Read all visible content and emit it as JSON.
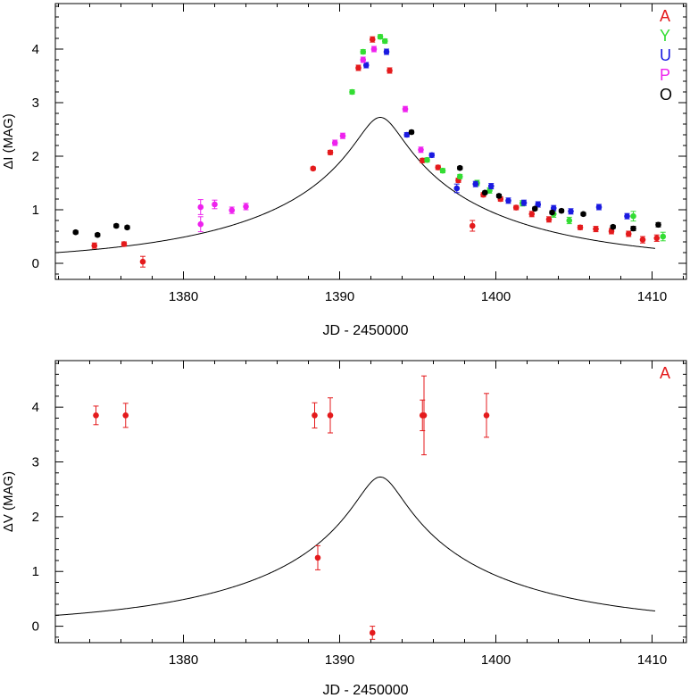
{
  "chart_data": [
    {
      "type": "scatter",
      "title": "",
      "xlabel": "JD - 2450000",
      "ylabel": "ΔI (MAG)",
      "xlim": [
        1371.8,
        1412.2
      ],
      "ylim": [
        -0.3,
        4.85
      ],
      "x_ticks": [
        1380,
        1390,
        1400,
        1410
      ],
      "y_ticks": [
        0,
        1,
        2,
        3,
        4
      ],
      "grid": false,
      "legend_position": "top-right",
      "model_curve": {
        "t0": 1392.6,
        "u0": 0.0815,
        "tE": 16.4,
        "x_range": [
          1371.8,
          1410.2
        ]
      },
      "series": [
        {
          "name": "A",
          "color": "#e41a1c",
          "points": [
            {
              "x": 1374.3,
              "y": 0.33,
              "err": 0.05
            },
            {
              "x": 1376.2,
              "y": 0.36,
              "err": 0.04
            },
            {
              "x": 1377.4,
              "y": 0.03,
              "err": 0.1
            },
            {
              "x": 1388.3,
              "y": 1.77,
              "err": 0.03
            },
            {
              "x": 1389.4,
              "y": 2.07,
              "err": 0.04
            },
            {
              "x": 1391.2,
              "y": 3.65,
              "err": 0.05
            },
            {
              "x": 1392.1,
              "y": 4.18,
              "err": 0.05
            },
            {
              "x": 1393.2,
              "y": 3.6,
              "err": 0.05
            },
            {
              "x": 1395.3,
              "y": 1.92,
              "err": 0.04
            },
            {
              "x": 1396.3,
              "y": 1.79,
              "err": 0.04
            },
            {
              "x": 1397.6,
              "y": 1.55,
              "err": 0.04
            },
            {
              "x": 1398.5,
              "y": 0.7,
              "err": 0.1
            },
            {
              "x": 1399.2,
              "y": 1.28,
              "err": 0.04
            },
            {
              "x": 1400.3,
              "y": 1.2,
              "err": 0.04
            },
            {
              "x": 1401.3,
              "y": 1.04,
              "err": 0.04
            },
            {
              "x": 1402.3,
              "y": 0.92,
              "err": 0.05
            },
            {
              "x": 1403.4,
              "y": 0.82,
              "err": 0.05
            },
            {
              "x": 1405.4,
              "y": 0.67,
              "err": 0.04
            },
            {
              "x": 1406.4,
              "y": 0.64,
              "err": 0.05
            },
            {
              "x": 1407.4,
              "y": 0.6,
              "err": 0.05
            },
            {
              "x": 1408.5,
              "y": 0.55,
              "err": 0.05
            },
            {
              "x": 1409.4,
              "y": 0.44,
              "err": 0.06
            },
            {
              "x": 1410.3,
              "y": 0.47,
              "err": 0.06
            }
          ]
        },
        {
          "name": "Y",
          "color": "#33dd33",
          "points": [
            {
              "x": 1390.8,
              "y": 3.2,
              "err": 0.04
            },
            {
              "x": 1391.5,
              "y": 3.95,
              "err": 0.04
            },
            {
              "x": 1392.6,
              "y": 4.23,
              "err": 0.04
            },
            {
              "x": 1392.9,
              "y": 4.15,
              "err": 0.04
            },
            {
              "x": 1395.6,
              "y": 1.93,
              "err": 0.04
            },
            {
              "x": 1396.6,
              "y": 1.73,
              "err": 0.04
            },
            {
              "x": 1397.7,
              "y": 1.62,
              "err": 0.04
            },
            {
              "x": 1398.8,
              "y": 1.5,
              "err": 0.05
            },
            {
              "x": 1399.6,
              "y": 1.36,
              "err": 0.05
            },
            {
              "x": 1401.7,
              "y": 1.12,
              "err": 0.05
            },
            {
              "x": 1403.7,
              "y": 0.92,
              "err": 0.06
            },
            {
              "x": 1404.7,
              "y": 0.8,
              "err": 0.06
            },
            {
              "x": 1408.8,
              "y": 0.88,
              "err": 0.09
            },
            {
              "x": 1410.7,
              "y": 0.5,
              "err": 0.08
            }
          ]
        },
        {
          "name": "U",
          "color": "#1a1ae0",
          "points": [
            {
              "x": 1391.7,
              "y": 3.7,
              "err": 0.05
            },
            {
              "x": 1393.0,
              "y": 3.95,
              "err": 0.05
            },
            {
              "x": 1394.3,
              "y": 2.4,
              "err": 0.04
            },
            {
              "x": 1395.9,
              "y": 2.02,
              "err": 0.04
            },
            {
              "x": 1397.5,
              "y": 1.4,
              "err": 0.08
            },
            {
              "x": 1398.7,
              "y": 1.48,
              "err": 0.05
            },
            {
              "x": 1399.7,
              "y": 1.44,
              "err": 0.05
            },
            {
              "x": 1400.8,
              "y": 1.17,
              "err": 0.05
            },
            {
              "x": 1401.8,
              "y": 1.13,
              "err": 0.05
            },
            {
              "x": 1402.7,
              "y": 1.1,
              "err": 0.05
            },
            {
              "x": 1403.7,
              "y": 1.03,
              "err": 0.05
            },
            {
              "x": 1404.8,
              "y": 0.97,
              "err": 0.05
            },
            {
              "x": 1406.6,
              "y": 1.05,
              "err": 0.05
            },
            {
              "x": 1408.4,
              "y": 0.88,
              "err": 0.05
            }
          ]
        },
        {
          "name": "P",
          "color": "#ee22ee",
          "points": [
            {
              "x": 1381.1,
              "y": 1.05,
              "err": 0.14
            },
            {
              "x": 1381.1,
              "y": 0.73,
              "err": 0.14
            },
            {
              "x": 1382.0,
              "y": 1.1,
              "err": 0.08
            },
            {
              "x": 1383.1,
              "y": 0.99,
              "err": 0.06
            },
            {
              "x": 1384.0,
              "y": 1.06,
              "err": 0.06
            },
            {
              "x": 1389.7,
              "y": 2.25,
              "err": 0.05
            },
            {
              "x": 1390.2,
              "y": 2.38,
              "err": 0.05
            },
            {
              "x": 1391.5,
              "y": 3.8,
              "err": 0.05
            },
            {
              "x": 1392.2,
              "y": 4.0,
              "err": 0.05
            },
            {
              "x": 1394.2,
              "y": 2.88,
              "err": 0.05
            },
            {
              "x": 1395.2,
              "y": 2.12,
              "err": 0.05
            }
          ]
        },
        {
          "name": "O",
          "color": "#000000",
          "points": [
            {
              "x": 1373.1,
              "y": 0.58,
              "err": 0.03
            },
            {
              "x": 1374.5,
              "y": 0.53,
              "err": 0.03
            },
            {
              "x": 1375.7,
              "y": 0.7,
              "err": 0.03
            },
            {
              "x": 1376.4,
              "y": 0.67,
              "err": 0.03
            },
            {
              "x": 1394.6,
              "y": 2.45,
              "err": 0.03
            },
            {
              "x": 1397.7,
              "y": 1.78,
              "err": 0.03
            },
            {
              "x": 1399.3,
              "y": 1.32,
              "err": 0.03
            },
            {
              "x": 1400.2,
              "y": 1.26,
              "err": 0.03
            },
            {
              "x": 1402.5,
              "y": 1.02,
              "err": 0.03
            },
            {
              "x": 1403.6,
              "y": 0.95,
              "err": 0.03
            },
            {
              "x": 1404.2,
              "y": 0.98,
              "err": 0.03
            },
            {
              "x": 1405.6,
              "y": 0.92,
              "err": 0.03
            },
            {
              "x": 1407.5,
              "y": 0.68,
              "err": 0.03
            },
            {
              "x": 1408.8,
              "y": 0.65,
              "err": 0.04
            },
            {
              "x": 1410.4,
              "y": 0.72,
              "err": 0.04
            }
          ]
        }
      ]
    },
    {
      "type": "scatter",
      "title": "",
      "xlabel": "JD - 2450000",
      "ylabel": "ΔV (MAG)",
      "xlim": [
        1371.8,
        1412.2
      ],
      "ylim": [
        -0.3,
        4.85
      ],
      "x_ticks": [
        1380,
        1390,
        1400,
        1410
      ],
      "y_ticks": [
        0,
        1,
        2,
        3,
        4
      ],
      "grid": false,
      "legend_position": "top-right",
      "model_curve": {
        "t0": 1392.6,
        "u0": 0.0815,
        "tE": 16.4,
        "x_range": [
          1371.8,
          1410.2
        ]
      },
      "series": [
        {
          "name": "A",
          "color": "#e41a1c",
          "points": [
            {
              "x": 1374.4,
              "y": 3.85,
              "err": 0.17
            },
            {
              "x": 1376.3,
              "y": 3.85,
              "err": 0.22
            },
            {
              "x": 1388.4,
              "y": 3.85,
              "err": 0.23
            },
            {
              "x": 1388.6,
              "y": 1.25,
              "err": 0.22
            },
            {
              "x": 1389.4,
              "y": 3.85,
              "err": 0.32
            },
            {
              "x": 1392.1,
              "y": -0.12,
              "err": 0.12
            },
            {
              "x": 1395.3,
              "y": 3.85,
              "err": 0.28
            },
            {
              "x": 1395.4,
              "y": 3.85,
              "err": 0.72
            },
            {
              "x": 1399.4,
              "y": 3.85,
              "err": 0.4
            }
          ]
        }
      ]
    }
  ]
}
